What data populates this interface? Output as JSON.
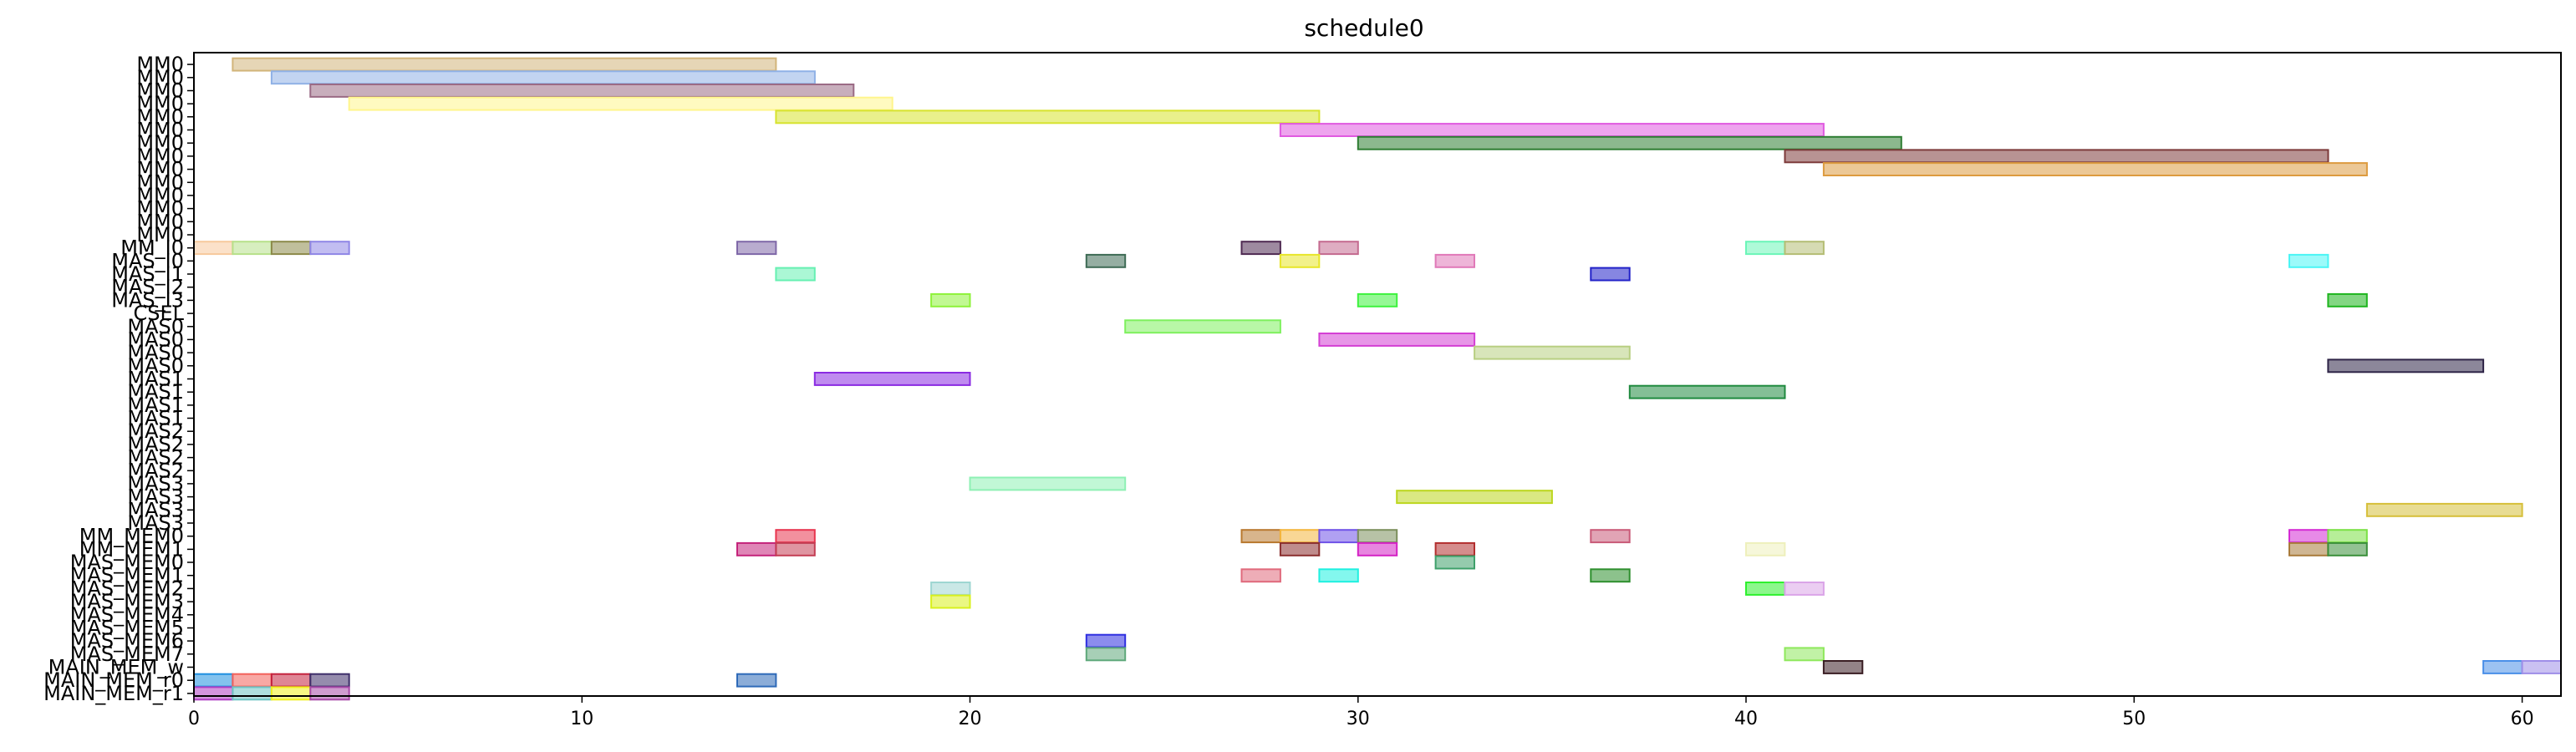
{
  "chart_data": {
    "type": "gantt",
    "title": "schedule0",
    "xlabel": "",
    "ylabel": "",
    "xlim": [
      0,
      61
    ],
    "grid": false,
    "rows": [
      "MM0",
      "MM0",
      "MM0",
      "MM0",
      "MM0",
      "MM0",
      "MM0",
      "MM0",
      "MM0",
      "MM0",
      "MM0",
      "MM0",
      "MM0",
      "MM0",
      "MM_I0",
      "MAS_I0",
      "MAS_I1",
      "MAS_I2",
      "MAS_I3",
      "CSEL",
      "MAS0",
      "MAS0",
      "MAS0",
      "MAS0",
      "MAS1",
      "MAS1",
      "MAS1",
      "MAS1",
      "MAS2",
      "MAS2",
      "MAS2",
      "MAS2",
      "MAS3",
      "MAS3",
      "MAS3",
      "MAS3",
      "MM_MEM0",
      "MM_MEM1",
      "MAS_MEM0",
      "MAS_MEM1",
      "MAS_MEM2",
      "MAS_MEM3",
      "MAS_MEM4",
      "MAS_MEM5",
      "MAS_MEM6",
      "MAS_MEM7",
      "MAIN_MEM_w",
      "MAIN_MEM_r0",
      "MAIN_MEM_r1"
    ],
    "xticks": [
      0,
      10,
      20,
      30,
      40,
      50,
      60
    ],
    "bars": [
      {
        "row": 0,
        "start": 1,
        "end": 15,
        "color": "#d2b57a"
      },
      {
        "row": 1,
        "start": 2,
        "end": 16,
        "color": "#8fb1e6"
      },
      {
        "row": 2,
        "start": 3,
        "end": 17,
        "color": "#9b6b85"
      },
      {
        "row": 3,
        "start": 4,
        "end": 18,
        "color": "#fff58c"
      },
      {
        "row": 4,
        "start": 15,
        "end": 29,
        "color": "#d7e32e"
      },
      {
        "row": 5,
        "start": 28,
        "end": 42,
        "color": "#e05ae0"
      },
      {
        "row": 6,
        "start": 30,
        "end": 44,
        "color": "#2e7d32"
      },
      {
        "row": 7,
        "start": 41,
        "end": 55,
        "color": "#7d3a3a"
      },
      {
        "row": 8,
        "start": 42,
        "end": 56,
        "color": "#dd9b3f"
      },
      {
        "row": 14,
        "start": 0,
        "end": 1,
        "color": "#f7c99c"
      },
      {
        "row": 14,
        "start": 1,
        "end": 2,
        "color": "#b7e08a"
      },
      {
        "row": 14,
        "start": 2,
        "end": 3,
        "color": "#8c8a4a"
      },
      {
        "row": 14,
        "start": 3,
        "end": 4,
        "color": "#8f86e6"
      },
      {
        "row": 14,
        "start": 14,
        "end": 15,
        "color": "#7f68a8"
      },
      {
        "row": 14,
        "start": 27,
        "end": 28,
        "color": "#4f2a52"
      },
      {
        "row": 14,
        "start": 29,
        "end": 30,
        "color": "#c46a8f"
      },
      {
        "row": 14,
        "start": 40,
        "end": 41,
        "color": "#6bf5b8"
      },
      {
        "row": 14,
        "start": 41,
        "end": 42,
        "color": "#b4bd74"
      },
      {
        "row": 15,
        "start": 23,
        "end": 24,
        "color": "#3e6b55"
      },
      {
        "row": 15,
        "start": 28,
        "end": 29,
        "color": "#e8e62a"
      },
      {
        "row": 15,
        "start": 32,
        "end": 33,
        "color": "#e079b8"
      },
      {
        "row": 15,
        "start": 54,
        "end": 55,
        "color": "#4bf5f5"
      },
      {
        "row": 16,
        "start": 15,
        "end": 16,
        "color": "#66f0b2"
      },
      {
        "row": 16,
        "start": 36,
        "end": 37,
        "color": "#2222c8"
      },
      {
        "row": 18,
        "start": 19,
        "end": 20,
        "color": "#8ef23a"
      },
      {
        "row": 18,
        "start": 30,
        "end": 31,
        "color": "#3ef23e"
      },
      {
        "row": 18,
        "start": 55,
        "end": 56,
        "color": "#1eb51e"
      },
      {
        "row": 20,
        "start": 24,
        "end": 28,
        "color": "#7ef05e"
      },
      {
        "row": 21,
        "start": 29,
        "end": 33,
        "color": "#d43fd4"
      },
      {
        "row": 22,
        "start": 33,
        "end": 37,
        "color": "#b8cf82"
      },
      {
        "row": 23,
        "start": 55,
        "end": 59,
        "color": "#2e2447"
      },
      {
        "row": 24,
        "start": 16,
        "end": 20,
        "color": "#8a2be2"
      },
      {
        "row": 25,
        "start": 37,
        "end": 41,
        "color": "#1f8a3f"
      },
      {
        "row": 32,
        "start": 20,
        "end": 24,
        "color": "#8ef0b4"
      },
      {
        "row": 33,
        "start": 31,
        "end": 35,
        "color": "#bcd61e"
      },
      {
        "row": 34,
        "start": 56,
        "end": 60,
        "color": "#d6bf3a"
      },
      {
        "row": 36,
        "start": 15,
        "end": 16,
        "color": "#e8344e"
      },
      {
        "row": 36,
        "start": 27,
        "end": 28,
        "color": "#b8782e"
      },
      {
        "row": 36,
        "start": 28,
        "end": 29,
        "color": "#f4b63e"
      },
      {
        "row": 36,
        "start": 29,
        "end": 30,
        "color": "#6f52e8"
      },
      {
        "row": 36,
        "start": 30,
        "end": 31,
        "color": "#7c8f5c"
      },
      {
        "row": 36,
        "start": 36,
        "end": 37,
        "color": "#c95a78"
      },
      {
        "row": 36,
        "start": 54,
        "end": 55,
        "color": "#d42ad4"
      },
      {
        "row": 36,
        "start": 55,
        "end": 56,
        "color": "#7ae044"
      },
      {
        "row": 37,
        "start": 14,
        "end": 15,
        "color": "#c4237a"
      },
      {
        "row": 37,
        "start": 15,
        "end": 16,
        "color": "#c43e54"
      },
      {
        "row": 37,
        "start": 28,
        "end": 29,
        "color": "#8a2e2e"
      },
      {
        "row": 37,
        "start": 30,
        "end": 31,
        "color": "#d422c4"
      },
      {
        "row": 37,
        "start": 32,
        "end": 33,
        "color": "#b22e2e"
      },
      {
        "row": 37,
        "start": 40,
        "end": 41,
        "color": "#eef0bc"
      },
      {
        "row": 37,
        "start": 54,
        "end": 55,
        "color": "#a87a3a"
      },
      {
        "row": 37,
        "start": 55,
        "end": 56,
        "color": "#3a8f3a"
      },
      {
        "row": 38,
        "start": 32,
        "end": 33,
        "color": "#3ea06a"
      },
      {
        "row": 39,
        "start": 27,
        "end": 28,
        "color": "#e06a7c"
      },
      {
        "row": 39,
        "start": 29,
        "end": 30,
        "color": "#1ef0e0"
      },
      {
        "row": 39,
        "start": 36,
        "end": 37,
        "color": "#2e8f2e"
      },
      {
        "row": 40,
        "start": 19,
        "end": 20,
        "color": "#9ed6d2"
      },
      {
        "row": 40,
        "start": 40,
        "end": 41,
        "color": "#2ef02e"
      },
      {
        "row": 40,
        "start": 41,
        "end": 42,
        "color": "#daa4e8"
      },
      {
        "row": 41,
        "start": 19,
        "end": 20,
        "color": "#d8f01e"
      },
      {
        "row": 44,
        "start": 23,
        "end": 24,
        "color": "#2e2ee0"
      },
      {
        "row": 45,
        "start": 23,
        "end": 24,
        "color": "#5ea87a"
      },
      {
        "row": 45,
        "start": 41,
        "end": 42,
        "color": "#8ee85c"
      },
      {
        "row": 46,
        "start": 42,
        "end": 43,
        "color": "#3a1e24"
      },
      {
        "row": 46,
        "start": 59,
        "end": 60,
        "color": "#4a8fe8"
      },
      {
        "row": 46,
        "start": 60,
        "end": 61,
        "color": "#9e8ee8"
      },
      {
        "row": 47,
        "start": 0,
        "end": 1,
        "color": "#1e8fe0"
      },
      {
        "row": 47,
        "start": 1,
        "end": 2,
        "color": "#f2605a"
      },
      {
        "row": 47,
        "start": 2,
        "end": 3,
        "color": "#c4233e"
      },
      {
        "row": 47,
        "start": 3,
        "end": 4,
        "color": "#3e2e6a"
      },
      {
        "row": 47,
        "start": 14,
        "end": 15,
        "color": "#2e6ab8"
      },
      {
        "row": 48,
        "start": 0,
        "end": 1,
        "color": "#b03ec4"
      },
      {
        "row": 48,
        "start": 1,
        "end": 2,
        "color": "#6ec4c4"
      },
      {
        "row": 48,
        "start": 2,
        "end": 3,
        "color": "#f0f01e"
      },
      {
        "row": 48,
        "start": 3,
        "end": 4,
        "color": "#a84aa8"
      }
    ]
  }
}
